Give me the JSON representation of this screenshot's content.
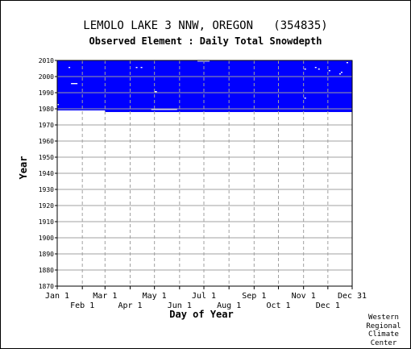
{
  "header": {
    "station": "LEMOLO LAKE 3 NNW, OREGON   (354835)",
    "element": "Observed Element : Daily Total Snowdepth"
  },
  "credit": {
    "line1": "Western",
    "line2": "Regional",
    "line3": "Climate",
    "line4": "Center"
  },
  "colors": {
    "data_fill": "#0000ff",
    "grid": "#a0a0a0",
    "gap": "#ffffff"
  },
  "chart_data": {
    "type": "heatmap",
    "xlabel": "Day of Year",
    "ylabel": "Year",
    "xlim": [
      "Jan 1",
      "Dec 31"
    ],
    "ylim": [
      1870,
      2010
    ],
    "x_ticks_row1": [
      "Jan 1",
      "Mar 1",
      "May 1",
      "Jul 1",
      "Sep 1",
      "Nov 1",
      "Dec 31"
    ],
    "x_ticks_row2": [
      "Feb 1",
      "Apr 1",
      "Jun 1",
      "Aug 1",
      "Oct 1",
      "Dec 1"
    ],
    "y_ticks": [
      1870,
      1880,
      1890,
      1900,
      1910,
      1920,
      1930,
      1940,
      1950,
      1960,
      1970,
      1980,
      1990,
      2000,
      2010
    ],
    "grid": true,
    "observed_period": {
      "start_year": 1978,
      "end_year": 2010,
      "start_day": 1,
      "end_day": 365
    },
    "partial_start": {
      "year": 1978,
      "from_day": 60,
      "to_day": 365
    },
    "missing_segments": [
      {
        "year": 1982,
        "from_day": 1,
        "to_day": 2
      },
      {
        "year": 1995,
        "from_day": 18,
        "to_day": 25
      },
      {
        "year": 2005,
        "from_day": 15,
        "to_day": 16
      },
      {
        "year": 2005,
        "from_day": 98,
        "to_day": 99
      },
      {
        "year": 2005,
        "from_day": 104,
        "to_day": 105
      },
      {
        "year": 2009,
        "from_day": 174,
        "to_day": 188
      },
      {
        "year": 1990,
        "from_day": 121,
        "to_day": 123
      },
      {
        "year": 1979,
        "from_day": 117,
        "to_day": 148
      },
      {
        "year": 2005,
        "from_day": 319,
        "to_day": 320
      },
      {
        "year": 2004,
        "from_day": 323,
        "to_day": 324
      },
      {
        "year": 2003,
        "from_day": 336,
        "to_day": 337
      },
      {
        "year": 2002,
        "from_day": 351,
        "to_day": 352
      },
      {
        "year": 2008,
        "from_day": 358,
        "to_day": 359
      },
      {
        "year": 2001,
        "from_day": 349,
        "to_day": 350
      },
      {
        "year": 1986,
        "from_day": 306,
        "to_day": 307
      },
      {
        "year": 2004,
        "from_day": 306,
        "to_day": 307
      }
    ]
  }
}
